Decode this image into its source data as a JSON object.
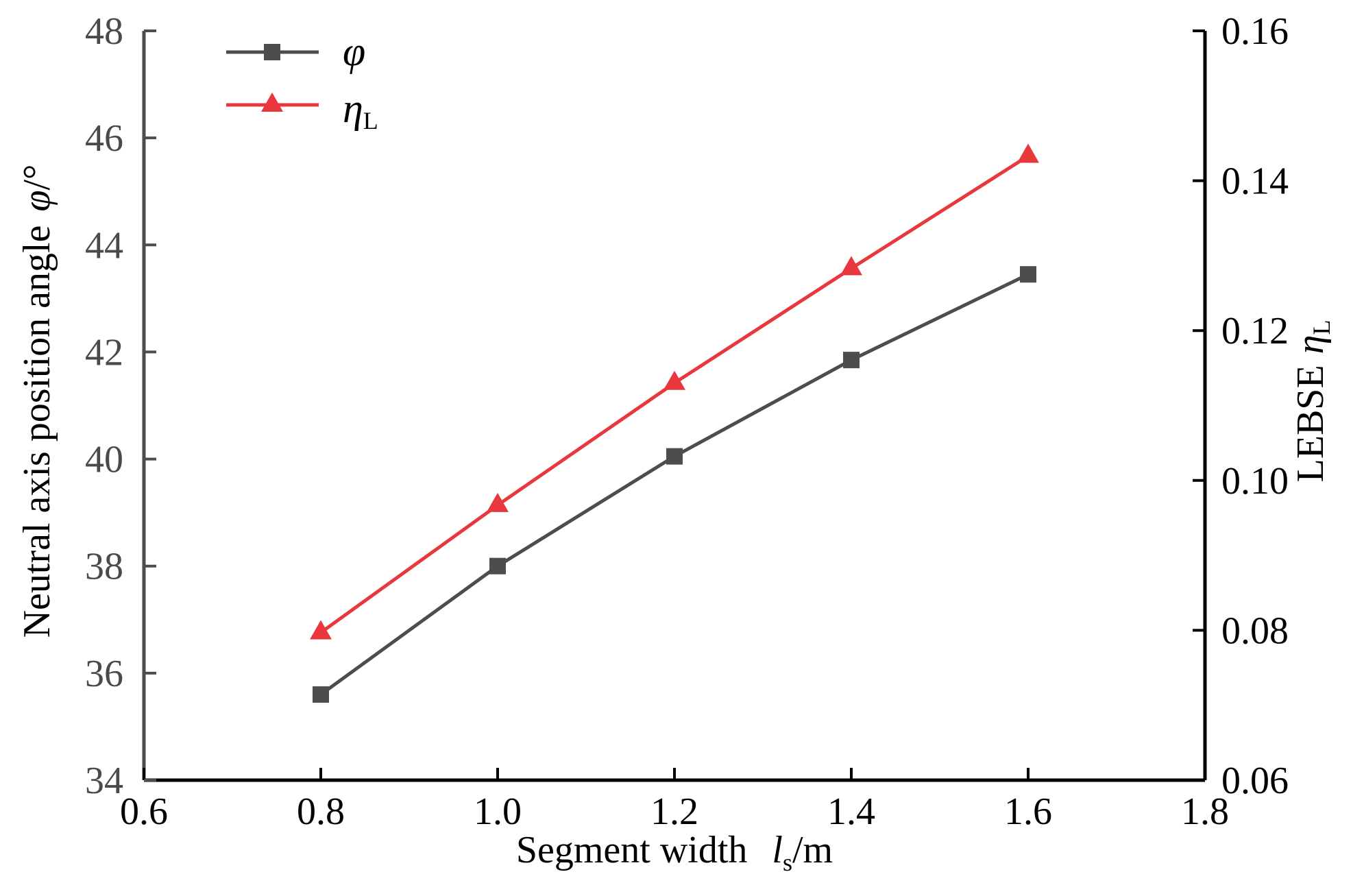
{
  "chart_data": {
    "type": "line",
    "x": [
      0.8,
      1.0,
      1.2,
      1.4,
      1.6
    ],
    "xlim": [
      0.6,
      1.8
    ],
    "xticks": [
      "0.6",
      "0.8",
      "1.0",
      "1.2",
      "1.4",
      "1.6",
      "1.8"
    ],
    "xtick_values": [
      0.6,
      0.8,
      1.0,
      1.2,
      1.4,
      1.6,
      1.8
    ],
    "xlabel": {
      "main": "Segment width",
      "var": "l",
      "sub": "s",
      "unit": "/m"
    },
    "ylim_left": [
      34,
      48
    ],
    "yticks_left": [
      "34",
      "36",
      "38",
      "40",
      "42",
      "44",
      "46",
      "48"
    ],
    "ytick_values_left": [
      34,
      36,
      38,
      40,
      42,
      44,
      46,
      48
    ],
    "ylabel_left": {
      "main": "Neutral axis position angle",
      "var": "φ",
      "unit": "/°"
    },
    "ylim_right": [
      0.06,
      0.16
    ],
    "yticks_right": [
      "0.06",
      "0.08",
      "0.10",
      "0.12",
      "0.14",
      "0.16"
    ],
    "ytick_values_right": [
      0.06,
      0.08,
      0.1,
      0.12,
      0.14,
      0.16
    ],
    "ylabel_right": {
      "main": "LEBSE",
      "var": "η",
      "sub": "L"
    },
    "series": [
      {
        "name": "φ",
        "axis": "left",
        "marker": "square",
        "color": "#4d4d4d",
        "values": [
          35.6,
          38.0,
          40.05,
          41.85,
          43.45
        ]
      },
      {
        "name": "η",
        "name_sub": "L",
        "axis": "right",
        "marker": "triangle",
        "color": "#e8383d",
        "values": [
          0.0797,
          0.0967,
          0.113,
          0.1283,
          0.1433
        ]
      }
    ],
    "legend_position": "top-left",
    "grid": false
  }
}
